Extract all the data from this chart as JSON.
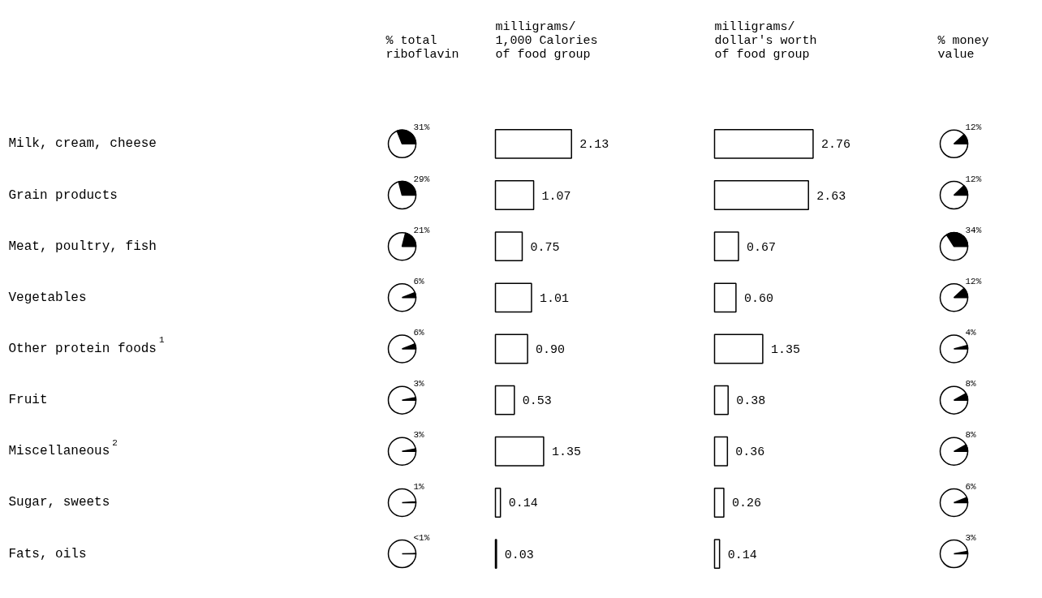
{
  "chart_data": [
    {
      "type": "other",
      "title": "% total\nriboflavin",
      "values": [
        31,
        29,
        21,
        6,
        6,
        3,
        3,
        1,
        0.5
      ],
      "value_labels": [
        "31%",
        "29%",
        "21%",
        "6%",
        "6%",
        "3%",
        "3%",
        "1%",
        "<1%"
      ]
    },
    {
      "type": "bar",
      "orientation": "horizontal",
      "title": "milligrams/\n1,000 Calories\nof food group",
      "categories": [
        "Milk, cream, cheese",
        "Grain products",
        "Meat, poultry, fish",
        "Vegetables",
        "Other protein foods$^{1}$",
        "Fruit",
        "Miscellaneous$^{2}$",
        "Sugar, sweets",
        "Fats, oils"
      ],
      "values": [
        2.13,
        1.07,
        0.75,
        1.01,
        0.9,
        0.53,
        1.35,
        0.14,
        0.03
      ],
      "value_labels": [
        "2.13",
        "1.07",
        "0.75",
        "1.01",
        "0.90",
        "0.53",
        "1.35",
        "0.14",
        "0.03"
      ]
    },
    {
      "type": "bar",
      "orientation": "horizontal",
      "title": "milligrams/\ndollar's worth\nof food group",
      "categories": [
        null,
        null,
        null,
        null,
        null,
        null,
        null,
        null,
        null
      ],
      "values": [
        2.76,
        2.63,
        0.67,
        0.6,
        1.35,
        0.38,
        0.36,
        0.26,
        0.14
      ],
      "value_labels": [
        "2.76",
        "2.63",
        "0.67",
        "0.60",
        "1.35",
        "0.38",
        "0.36",
        "0.26",
        "0.14"
      ]
    },
    {
      "type": "other",
      "title": "% money\nvalue",
      "values": [
        12,
        12,
        34,
        12,
        4,
        8,
        8,
        6,
        3
      ],
      "value_labels": [
        "12%",
        "12%",
        "34%",
        "12%",
        "4%",
        "8%",
        "8%",
        "6%",
        "3%"
      ]
    }
  ]
}
